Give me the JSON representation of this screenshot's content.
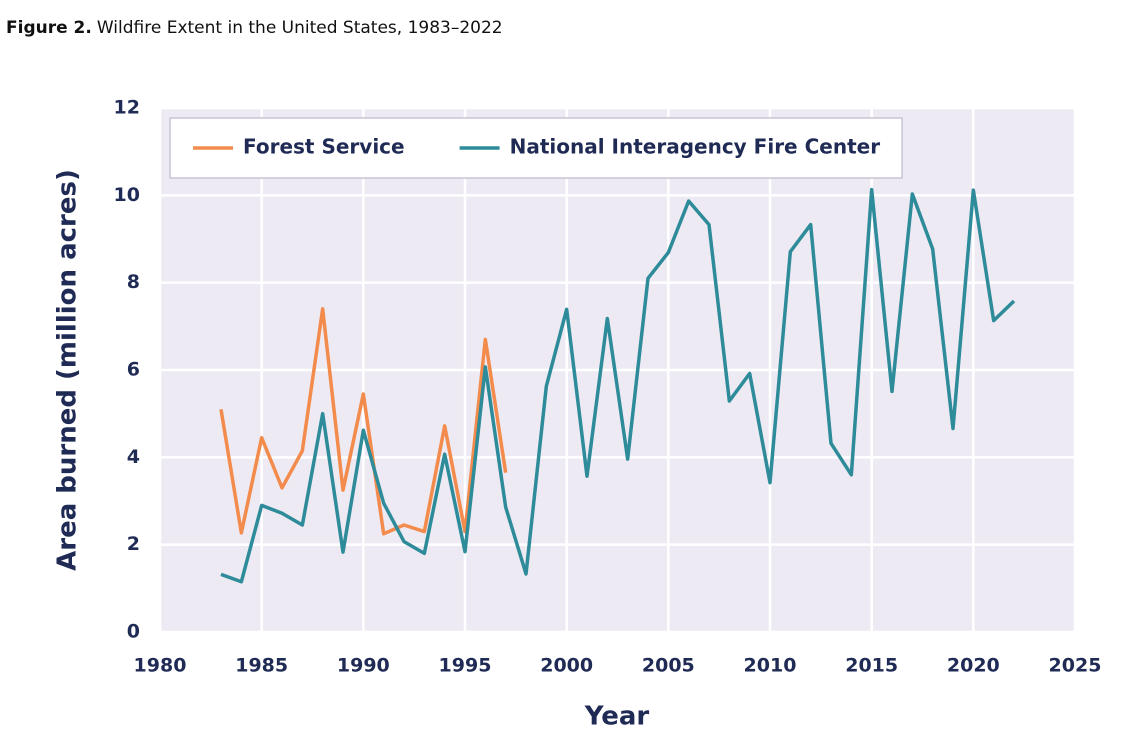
{
  "chart_data": {
    "type": "line",
    "title_label": "Figure 2.",
    "title": "Wildfire Extent in the United States, 1983–2022",
    "x_label": "Year",
    "y_label": "Area burned (million acres)",
    "x": [
      1983,
      1984,
      1985,
      1986,
      1987,
      1988,
      1989,
      1990,
      1991,
      1992,
      1993,
      1994,
      1995,
      1996,
      1997,
      1998,
      1999,
      2000,
      2001,
      2002,
      2003,
      2004,
      2005,
      2006,
      2007,
      2008,
      2009,
      2010,
      2011,
      2012,
      2013,
      2014,
      2015,
      2016,
      2017,
      2018,
      2019,
      2020,
      2021,
      2022
    ],
    "series": [
      {
        "name": "Forest Service",
        "color": "#f28b4b",
        "values": [
          5.1,
          2.27,
          4.45,
          3.3,
          4.15,
          7.4,
          3.25,
          5.45,
          2.25,
          2.45,
          2.3,
          4.72,
          2.3,
          6.7,
          3.65,
          null,
          null,
          null,
          null,
          null,
          null,
          null,
          null,
          null,
          null,
          null,
          null,
          null,
          null,
          null,
          null,
          null,
          null,
          null,
          null,
          null,
          null,
          null,
          null,
          null
        ]
      },
      {
        "name": "National Interagency Fire Center",
        "color": "#2e8b99",
        "values": [
          1.32,
          1.15,
          2.9,
          2.72,
          2.45,
          5.0,
          1.83,
          4.62,
          2.95,
          2.07,
          1.8,
          4.07,
          1.84,
          6.07,
          2.86,
          1.33,
          5.63,
          7.39,
          3.57,
          7.18,
          3.96,
          8.1,
          8.69,
          9.87,
          9.33,
          5.29,
          5.92,
          3.42,
          8.71,
          9.33,
          4.32,
          3.6,
          10.13,
          5.51,
          10.03,
          8.77,
          4.66,
          10.12,
          7.13,
          7.58
        ]
      }
    ],
    "xlim": [
      1980,
      2025
    ],
    "xticks": [
      1980,
      1985,
      1990,
      1995,
      2000,
      2005,
      2010,
      2015,
      2020,
      2025
    ],
    "ylim": [
      0,
      12
    ],
    "yticks": [
      0,
      2,
      4,
      6,
      8,
      10,
      12
    ],
    "grid": true,
    "legend": "top-left"
  }
}
